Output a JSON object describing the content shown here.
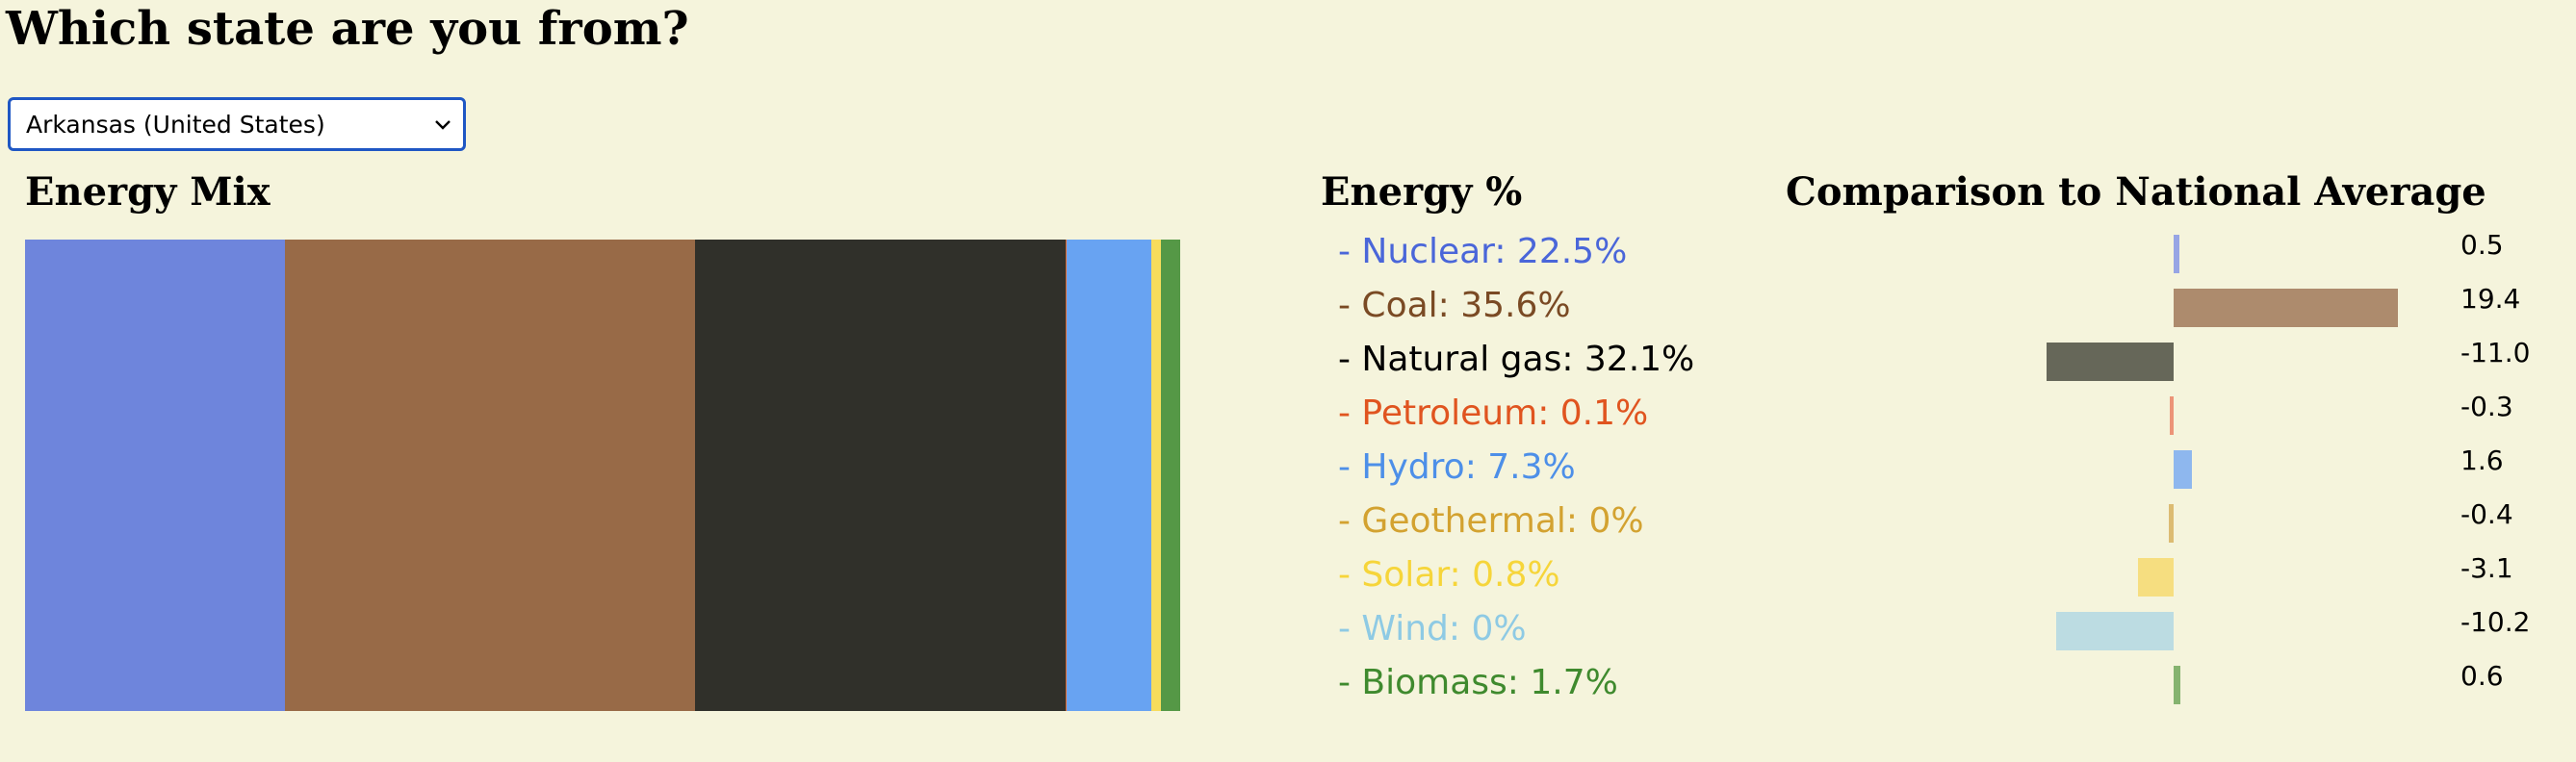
{
  "header": {
    "title": "Which state are you from?"
  },
  "state_select": {
    "value": "Arkansas (United States)"
  },
  "mix": {
    "heading": "Energy Mix"
  },
  "legend": {
    "heading": "Energy %"
  },
  "comparison": {
    "heading": "Comparison to National Average"
  },
  "chart_data": [
    {
      "type": "bar",
      "orientation": "stacked-horizontal",
      "title": "Energy Mix",
      "categories": [
        "Nuclear",
        "Coal",
        "Natural gas",
        "Petroleum",
        "Hydro",
        "Geothermal",
        "Solar",
        "Wind",
        "Biomass"
      ],
      "values": [
        22.5,
        35.6,
        32.1,
        0.1,
        7.3,
        0,
        0.8,
        0,
        1.7
      ],
      "colors": [
        "#6e85dc",
        "#986a47",
        "#30302a",
        "#e06a2c",
        "#68a3f2",
        "#d4a73e",
        "#f7dc5c",
        "#9ccfe6",
        "#559846"
      ]
    },
    {
      "type": "table",
      "title": "Energy %",
      "items": [
        {
          "label": "- Nuclear: 22.5%",
          "color": "#4a66d9"
        },
        {
          "label": "- Coal: 35.6%",
          "color": "#7a4a24"
        },
        {
          "label": "- Natural gas: 32.1%",
          "color": "#000000"
        },
        {
          "label": "- Petroleum: 0.1%",
          "color": "#e0541f"
        },
        {
          "label": "- Hydro: 7.3%",
          "color": "#4d8fe8"
        },
        {
          "label": "- Geothermal: 0%",
          "color": "#d3a230"
        },
        {
          "label": "- Solar: 0.8%",
          "color": "#f6d53a"
        },
        {
          "label": "- Wind: 0%",
          "color": "#8ecae4"
        },
        {
          "label": "- Biomass: 1.7%",
          "color": "#3f8a2e"
        }
      ]
    },
    {
      "type": "bar",
      "orientation": "horizontal-diverging",
      "title": "Comparison to National Average",
      "categories": [
        "Nuclear",
        "Coal",
        "Natural gas",
        "Petroleum",
        "Hydro",
        "Geothermal",
        "Solar",
        "Wind",
        "Biomass"
      ],
      "values": [
        0.5,
        19.4,
        -11.0,
        -0.3,
        1.6,
        -0.4,
        -3.1,
        -10.2,
        0.6
      ],
      "value_labels": [
        "0.5",
        "19.4",
        "-11.0",
        "-0.3",
        "1.6",
        "-0.4",
        "-3.1",
        "-10.2",
        "0.6"
      ],
      "colors": [
        "#97a5e4",
        "#ad8b6d",
        "#666759",
        "#ec9478",
        "#8eb7ee",
        "#dcbb72",
        "#f6de80",
        "#bcdce2",
        "#85b36f"
      ]
    }
  ]
}
